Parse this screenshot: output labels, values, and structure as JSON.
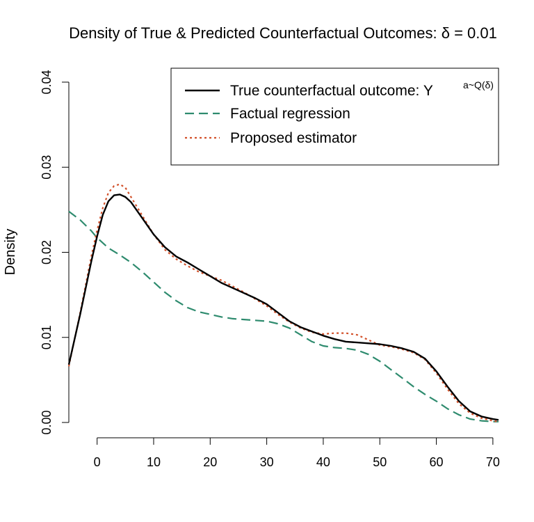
{
  "chart_data": {
    "type": "line",
    "title": "Density of True & Predicted Counterfactual Outcomes: δ = 0.01",
    "xlabel": "",
    "ylabel": "Density",
    "xlim": [
      -5,
      71
    ],
    "ylim": [
      0,
      0.04
    ],
    "x_ticks": [
      "0",
      "10",
      "20",
      "30",
      "40",
      "50",
      "60",
      "70"
    ],
    "y_ticks": [
      "0.00",
      "0.01",
      "0.02",
      "0.03",
      "0.04"
    ],
    "grid": false,
    "legend_position": "top-right",
    "series": [
      {
        "name": "True counterfactual outcome: Y",
        "superscript": "a~Q(δ)",
        "color": "#000000",
        "style": "solid",
        "x": [
          -5,
          -3,
          -1,
          0,
          1,
          2,
          3,
          4,
          5,
          6,
          8,
          10,
          12,
          14,
          16,
          18,
          20,
          22,
          24,
          26,
          28,
          30,
          32,
          34,
          36,
          38,
          40,
          42,
          44,
          46,
          48,
          50,
          52,
          54,
          56,
          58,
          60,
          62,
          64,
          66,
          68,
          70,
          71
        ],
        "y": [
          0.0068,
          0.0127,
          0.019,
          0.0219,
          0.0244,
          0.026,
          0.0267,
          0.0268,
          0.0265,
          0.0259,
          0.024,
          0.0221,
          0.0206,
          0.0195,
          0.0188,
          0.018,
          0.0172,
          0.0164,
          0.0158,
          0.0152,
          0.0146,
          0.0139,
          0.0129,
          0.0119,
          0.0112,
          0.0107,
          0.0102,
          0.0098,
          0.0095,
          0.0094,
          0.0093,
          0.0092,
          0.009,
          0.0087,
          0.0083,
          0.0075,
          0.006,
          0.0042,
          0.0025,
          0.0013,
          0.0007,
          0.0004,
          0.0003
        ]
      },
      {
        "name": "Factual regression",
        "color": "#2e8b6e",
        "style": "dashed",
        "x": [
          -5,
          -3,
          -1,
          0,
          2,
          4,
          6,
          8,
          10,
          12,
          14,
          16,
          18,
          20,
          22,
          24,
          26,
          28,
          30,
          32,
          34,
          36,
          38,
          40,
          42,
          44,
          46,
          48,
          50,
          52,
          54,
          56,
          58,
          60,
          62,
          64,
          66,
          68,
          70,
          71
        ],
        "y": [
          0.0248,
          0.0238,
          0.0225,
          0.0217,
          0.0205,
          0.0197,
          0.0188,
          0.0177,
          0.0165,
          0.0153,
          0.0143,
          0.0135,
          0.013,
          0.0127,
          0.0124,
          0.0122,
          0.0121,
          0.012,
          0.0119,
          0.0116,
          0.0111,
          0.0103,
          0.0095,
          0.009,
          0.0088,
          0.0087,
          0.0085,
          0.008,
          0.0072,
          0.0062,
          0.0052,
          0.0042,
          0.0033,
          0.0025,
          0.0016,
          0.0009,
          0.0004,
          0.0002,
          0.0001,
          0.0001
        ]
      },
      {
        "name": "Proposed estimator",
        "color": "#d2512a",
        "style": "dotted",
        "x": [
          -5,
          -3,
          -1,
          0,
          1,
          2,
          3,
          4,
          5,
          6,
          8,
          10,
          12,
          14,
          16,
          18,
          20,
          22,
          24,
          26,
          28,
          30,
          32,
          34,
          36,
          38,
          40,
          42,
          44,
          46,
          48,
          50,
          52,
          54,
          56,
          58,
          60,
          62,
          64,
          66,
          68,
          70,
          71
        ],
        "y": [
          0.0066,
          0.0129,
          0.0196,
          0.0226,
          0.0252,
          0.027,
          0.0278,
          0.028,
          0.0276,
          0.0265,
          0.0243,
          0.0221,
          0.0203,
          0.0192,
          0.0184,
          0.0177,
          0.0172,
          0.0167,
          0.016,
          0.0153,
          0.0145,
          0.0137,
          0.0127,
          0.0118,
          0.0111,
          0.0106,
          0.0104,
          0.0105,
          0.0105,
          0.0103,
          0.0097,
          0.0091,
          0.0089,
          0.0086,
          0.0082,
          0.0074,
          0.0058,
          0.0039,
          0.0022,
          0.0011,
          0.0005,
          0.0002,
          0.0001
        ]
      }
    ]
  }
}
